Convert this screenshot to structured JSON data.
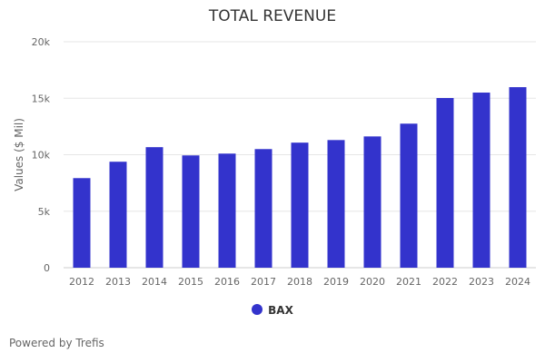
{
  "chart_data": {
    "type": "bar",
    "title": "TOTAL REVENUE",
    "xlabel": "",
    "ylabel": "Values ($ Mil)",
    "ylim": [
      0,
      20000
    ],
    "yticks": [
      0,
      5000,
      10000,
      15000,
      20000
    ],
    "ytick_labels": [
      "0",
      "5k",
      "10k",
      "15k",
      "20k"
    ],
    "grid": true,
    "categories": [
      "2012",
      "2013",
      "2014",
      "2015",
      "2016",
      "2017",
      "2018",
      "2019",
      "2020",
      "2021",
      "2022",
      "2023",
      "2024"
    ],
    "series": [
      {
        "name": "BAX",
        "color": "#3333cc",
        "values": [
          7930,
          9380,
          10670,
          9940,
          10100,
          10500,
          11070,
          11300,
          11620,
          12750,
          15020,
          15500,
          15980
        ]
      }
    ],
    "legend_position": "bottom"
  },
  "footer": {
    "credit": "Powered by Trefis"
  }
}
